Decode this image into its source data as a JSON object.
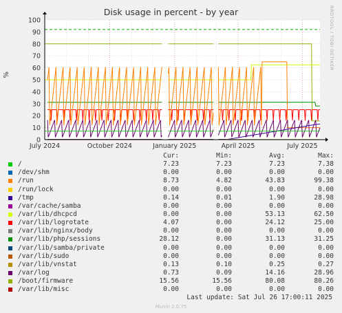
{
  "header": {
    "title": "Disk usage in percent - by year",
    "side_text": "RRDTOOL / TOBI OETIKER"
  },
  "footer": {
    "last_update": "Last update: Sat Jul 26 17:00:11 2025",
    "munin": "Munin 2.0.75"
  },
  "legend_header": {
    "cur": "Cur:",
    "min": "Min:",
    "avg": "Avg:",
    "max": "Max:"
  },
  "chart_data": {
    "type": "line",
    "title": "Disk usage in percent - by year",
    "ylabel": "%",
    "ylim": [
      0,
      100
    ],
    "yticks": [
      "0",
      "10",
      "20",
      "30",
      "40",
      "50",
      "60",
      "70",
      "80",
      "90",
      "100"
    ],
    "xticks": [
      "July 2024",
      "October 2024",
      "January 2025",
      "April 2025",
      "July 2025"
    ],
    "xrange": [
      "2024-07-01",
      "2025-07-26"
    ],
    "grid": true,
    "threshold_lines": [
      {
        "value": 92,
        "style": "dashed",
        "color": "#00aa00"
      }
    ],
    "series": [
      {
        "name": "/",
        "color": "#00cc00",
        "cur": "7.23",
        "min": "7.23",
        "avg": "7.23",
        "max": "7.38"
      },
      {
        "name": "/dev/shm",
        "color": "#0066b3",
        "cur": "0.00",
        "min": "0.00",
        "avg": "0.00",
        "max": "0.00"
      },
      {
        "name": "/run",
        "color": "#ff8000",
        "cur": "8.73",
        "min": "4.82",
        "avg": "43.83",
        "max": "99.38"
      },
      {
        "name": "/run/lock",
        "color": "#ffcc00",
        "cur": "0.00",
        "min": "0.00",
        "avg": "0.00",
        "max": "0.00"
      },
      {
        "name": "/tmp",
        "color": "#330099",
        "cur": "0.14",
        "min": "0.01",
        "avg": "1.90",
        "max": "28.98"
      },
      {
        "name": "/var/cache/samba",
        "color": "#990099",
        "cur": "0.00",
        "min": "0.00",
        "avg": "0.00",
        "max": "0.00"
      },
      {
        "name": "/var/lib/dhcpcd",
        "color": "#ccff00",
        "cur": "0.00",
        "min": "0.00",
        "avg": "53.13",
        "max": "62.50"
      },
      {
        "name": "/var/lib/logrotate",
        "color": "#ff0000",
        "cur": "4.07",
        "min": "0.00",
        "avg": "24.12",
        "max": "25.00"
      },
      {
        "name": "/var/lib/nginx/body",
        "color": "#808080",
        "cur": "0.00",
        "min": "0.00",
        "avg": "0.00",
        "max": "0.00"
      },
      {
        "name": "/var/lib/php/sessions",
        "color": "#008f00",
        "cur": "28.12",
        "min": "0.00",
        "avg": "31.13",
        "max": "31.25"
      },
      {
        "name": "/var/lib/samba/private",
        "color": "#00487d",
        "cur": "0.00",
        "min": "0.00",
        "avg": "0.00",
        "max": "0.00"
      },
      {
        "name": "/var/lib/sudo",
        "color": "#b35a00",
        "cur": "0.00",
        "min": "0.00",
        "avg": "0.00",
        "max": "0.00"
      },
      {
        "name": "/var/lib/vnstat",
        "color": "#b38f00",
        "cur": "0.13",
        "min": "0.10",
        "avg": "0.25",
        "max": "0.27"
      },
      {
        "name": "/var/log",
        "color": "#6b006b",
        "cur": "0.73",
        "min": "0.09",
        "avg": "14.16",
        "max": "28.96"
      },
      {
        "name": "/boot/firmware",
        "color": "#8fb300",
        "cur": "15.56",
        "min": "15.56",
        "avg": "80.08",
        "max": "80.26"
      },
      {
        "name": "/var/lib/misc",
        "color": "#b30000",
        "cur": "0.00",
        "min": "0.00",
        "avg": "0.00",
        "max": "0.00"
      }
    ]
  }
}
